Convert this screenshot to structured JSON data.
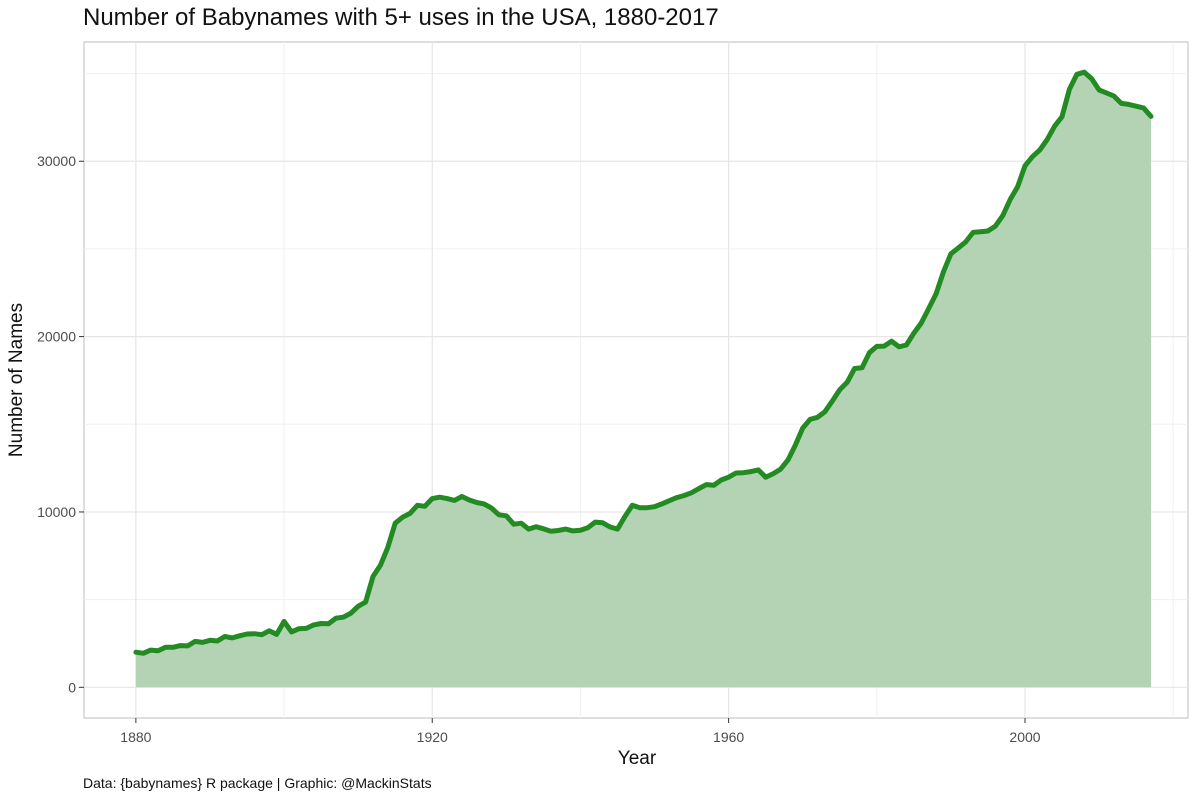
{
  "chart_data": {
    "type": "area",
    "title": "Number of Babynames with 5+ uses in the USA, 1880-2017",
    "xlabel": "Year",
    "ylabel": "Number of Names",
    "caption": "Data: {babynames} R package | Graphic: @MackinStats",
    "xlim": [
      1873,
      2022
    ],
    "ylim": [
      -1750,
      36800
    ],
    "x_ticks": [
      1880,
      1920,
      1960,
      2000
    ],
    "y_ticks": [
      0,
      10000,
      20000,
      30000
    ],
    "grid": true,
    "colors": {
      "line": "#228B22",
      "fill": "#b4d3b4",
      "grid": "#e6e6e6",
      "panel_border": "#bdbdbd"
    },
    "x": [
      1880,
      1881,
      1882,
      1883,
      1884,
      1885,
      1886,
      1887,
      1888,
      1889,
      1890,
      1891,
      1892,
      1893,
      1894,
      1895,
      1896,
      1897,
      1898,
      1899,
      1900,
      1901,
      1902,
      1903,
      1904,
      1905,
      1906,
      1907,
      1908,
      1909,
      1910,
      1911,
      1912,
      1913,
      1914,
      1915,
      1916,
      1917,
      1918,
      1919,
      1920,
      1921,
      1922,
      1923,
      1924,
      1925,
      1926,
      1927,
      1928,
      1929,
      1930,
      1931,
      1932,
      1933,
      1934,
      1935,
      1936,
      1937,
      1938,
      1939,
      1940,
      1941,
      1942,
      1943,
      1944,
      1945,
      1946,
      1947,
      1948,
      1949,
      1950,
      1951,
      1952,
      1953,
      1954,
      1955,
      1956,
      1957,
      1958,
      1959,
      1960,
      1961,
      1962,
      1963,
      1964,
      1965,
      1966,
      1967,
      1968,
      1969,
      1970,
      1971,
      1972,
      1973,
      1974,
      1975,
      1976,
      1977,
      1978,
      1979,
      1980,
      1981,
      1982,
      1983,
      1984,
      1985,
      1986,
      1987,
      1988,
      1989,
      1990,
      1991,
      1992,
      1993,
      1994,
      1995,
      1996,
      1997,
      1998,
      1999,
      2000,
      2001,
      2002,
      2003,
      2004,
      2005,
      2006,
      2007,
      2008,
      2009,
      2010,
      2011,
      2012,
      2013,
      2014,
      2015,
      2016,
      2017
    ],
    "y": [
      2000,
      1940,
      2120,
      2080,
      2280,
      2280,
      2380,
      2360,
      2620,
      2560,
      2680,
      2640,
      2900,
      2820,
      2940,
      3040,
      3060,
      3000,
      3220,
      3020,
      3760,
      3160,
      3340,
      3360,
      3560,
      3640,
      3620,
      3940,
      4000,
      4220,
      4620,
      4860,
      6320,
      6960,
      7980,
      9360,
      9700,
      9920,
      10380,
      10320,
      10760,
      10840,
      10760,
      10660,
      10880,
      10680,
      10540,
      10460,
      10220,
      9840,
      9780,
      9300,
      9360,
      9020,
      9160,
      9040,
      8900,
      8940,
      9020,
      8920,
      8960,
      9100,
      9420,
      9380,
      9140,
      9020,
      9740,
      10380,
      10240,
      10240,
      10300,
      10460,
      10640,
      10820,
      10940,
      11100,
      11340,
      11560,
      11520,
      11820,
      11980,
      12220,
      12240,
      12300,
      12400,
      11980,
      12180,
      12440,
      12960,
      13800,
      14780,
      15280,
      15400,
      15720,
      16320,
      16980,
      17400,
      18180,
      18220,
      19080,
      19440,
      19460,
      19740,
      19420,
      19520,
      20200,
      20780,
      21600,
      22440,
      23700,
      24720,
      25060,
      25400,
      25940,
      25980,
      26020,
      26300,
      26900,
      27820,
      28540,
      29740,
      30260,
      30640,
      31240,
      32000,
      32540,
      34100,
      34960,
      35080,
      34700,
      34060,
      33900,
      33720,
      33300,
      33240,
      33140,
      33040,
      32560
    ]
  }
}
